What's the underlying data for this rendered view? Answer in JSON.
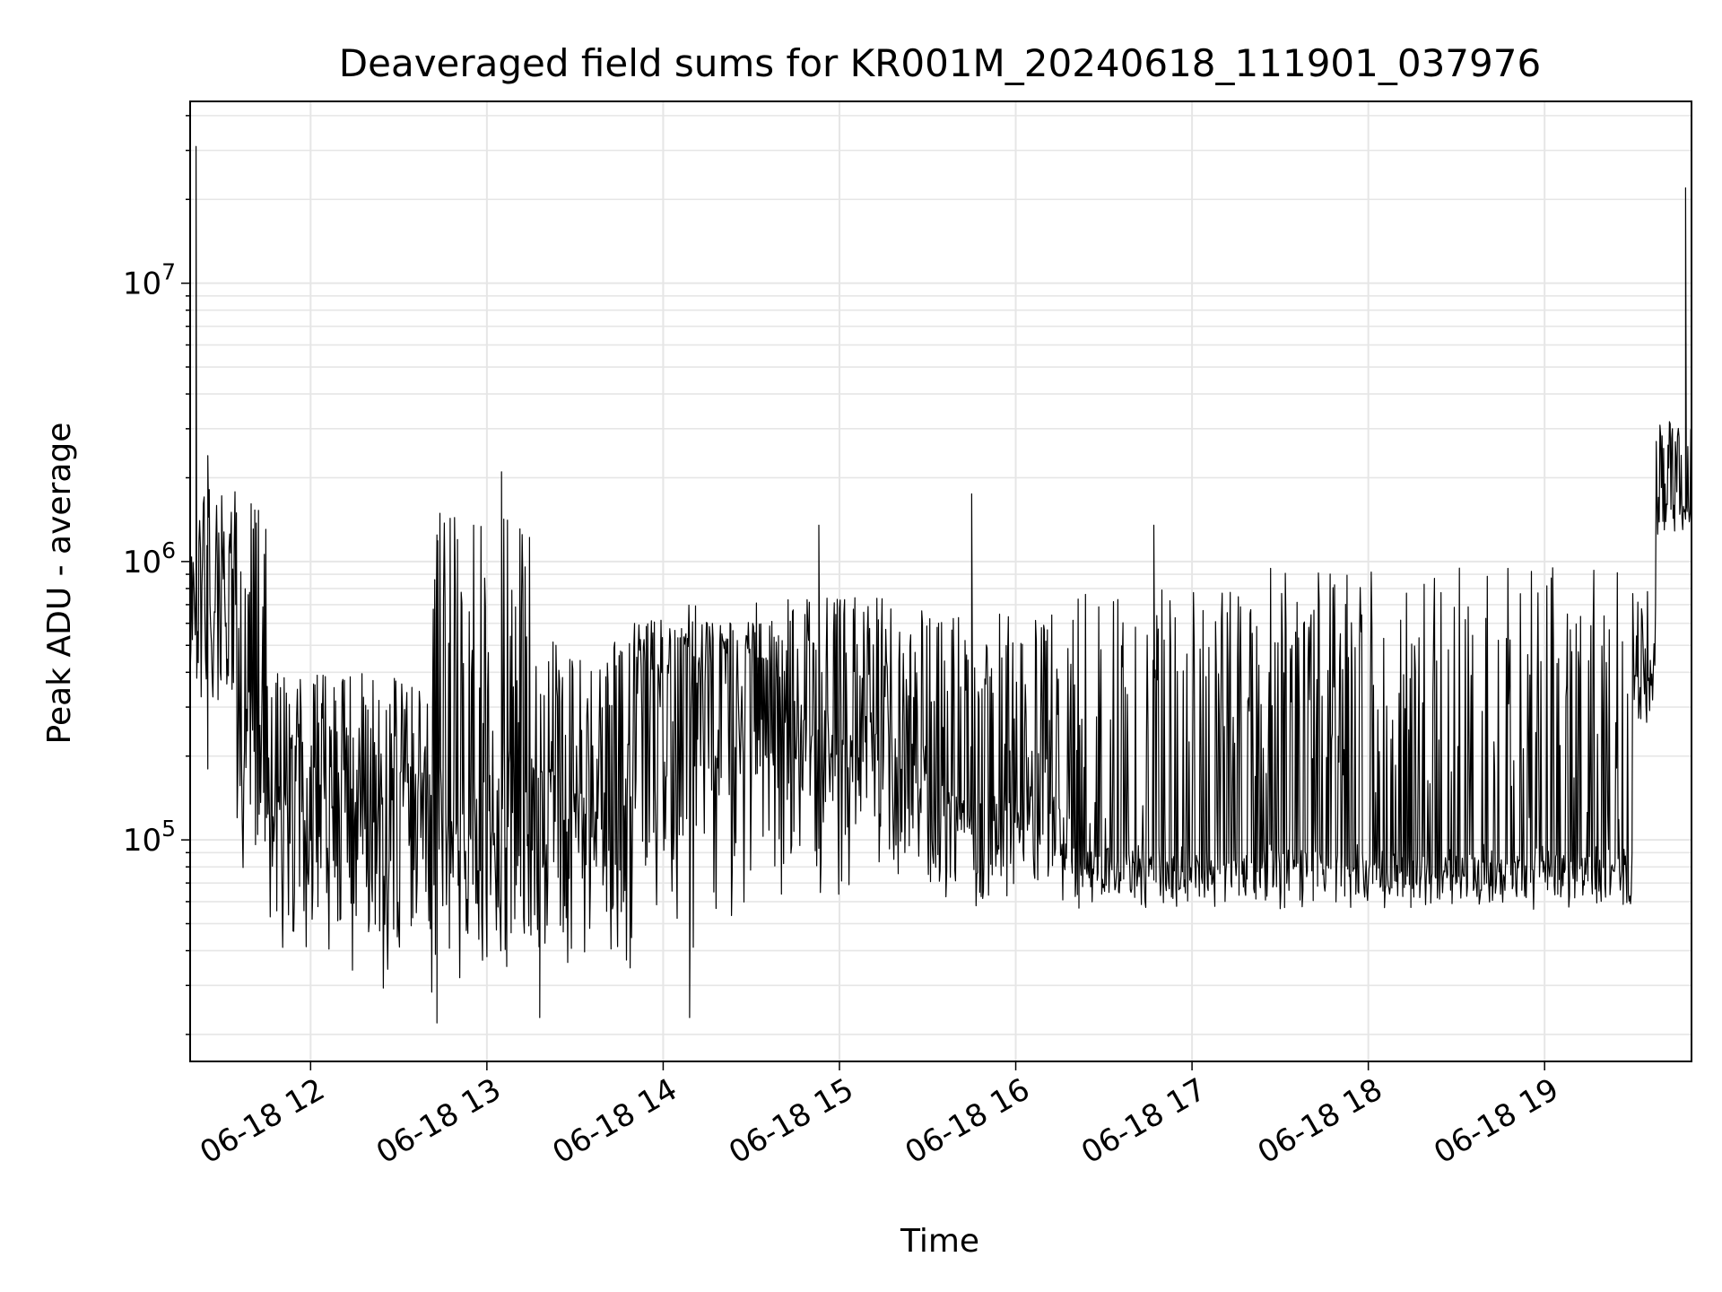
{
  "chart_data": {
    "type": "line",
    "title": "Deaveraged field sums for KR001M_20240618_111901_037976",
    "xlabel": "Time",
    "ylabel": "Peak ADU - average",
    "x_scale": "time",
    "y_scale": "log",
    "xlim": [
      "2024-06-18 11:19",
      "2024-06-18 19:50"
    ],
    "ylim": [
      16000,
      45000000
    ],
    "grid": {
      "major": true,
      "minor_y": true,
      "color": "#e6e6e6"
    },
    "line_color": "#000000",
    "x_ticks": [
      {
        "value": "2024-06-18 12:00",
        "label": "06-18 12"
      },
      {
        "value": "2024-06-18 13:00",
        "label": "06-18 13"
      },
      {
        "value": "2024-06-18 14:00",
        "label": "06-18 14"
      },
      {
        "value": "2024-06-18 15:00",
        "label": "06-18 15"
      },
      {
        "value": "2024-06-18 16:00",
        "label": "06-18 16"
      },
      {
        "value": "2024-06-18 17:00",
        "label": "06-18 17"
      },
      {
        "value": "2024-06-18 18:00",
        "label": "06-18 18"
      },
      {
        "value": "2024-06-18 19:00",
        "label": "06-18 19"
      }
    ],
    "y_ticks": [
      {
        "value": 100000,
        "base": "10",
        "exp": "5"
      },
      {
        "value": 1000000,
        "base": "10",
        "exp": "6"
      },
      {
        "value": 10000000,
        "base": "10",
        "exp": "7"
      }
    ],
    "segments": [
      {
        "t0": "2024-06-18 11:19",
        "t1": "2024-06-18 11:22",
        "floor": 280000,
        "base": 500000,
        "ceil": 1100000
      },
      {
        "t0": "2024-06-18 11:22",
        "t1": "2024-06-18 11:35",
        "floor": 150000,
        "base": 900000,
        "ceil": 2000000
      },
      {
        "t0": "2024-06-18 11:35",
        "t1": "2024-06-18 11:45",
        "floor": 70000,
        "base": 250000,
        "ceil": 1700000
      },
      {
        "t0": "2024-06-18 11:45",
        "t1": "2024-06-18 12:40",
        "floor": 28000,
        "base": 150000,
        "ceil": 400000
      },
      {
        "t0": "2024-06-18 12:40",
        "t1": "2024-06-18 13:15",
        "floor": 25000,
        "base": 120000,
        "ceil": 1500000
      },
      {
        "t0": "2024-06-18 13:15",
        "t1": "2024-06-18 13:50",
        "floor": 28000,
        "base": 150000,
        "ceil": 520000
      },
      {
        "t0": "2024-06-18 13:50",
        "t1": "2024-06-18 14:40",
        "floor": 35000,
        "base": 400000,
        "ceil": 620000
      },
      {
        "t0": "2024-06-18 14:40",
        "t1": "2024-06-18 15:30",
        "floor": 55000,
        "base": 230000,
        "ceil": 750000
      },
      {
        "t0": "2024-06-18 15:30",
        "t1": "2024-06-18 16:20",
        "floor": 55000,
        "base": 130000,
        "ceil": 650000
      },
      {
        "t0": "2024-06-18 16:20",
        "t1": "2024-06-18 17:25",
        "floor": 55000,
        "base": 85000,
        "ceil": 800000
      },
      {
        "t0": "2024-06-18 17:25",
        "t1": "2024-06-18 19:30",
        "floor": 55000,
        "base": 85000,
        "ceil": 950000
      },
      {
        "t0": "2024-06-18 19:30",
        "t1": "2024-06-18 19:38",
        "floor": 230000,
        "base": 400000,
        "ceil": 800000
      },
      {
        "t0": "2024-06-18 19:38",
        "t1": "2024-06-18 19:50",
        "floor": 1200000,
        "base": 1600000,
        "ceil": 3200000
      }
    ],
    "spikes": [
      {
        "x": "2024-06-18 11:21",
        "y": 31000000
      },
      {
        "x": "2024-06-18 11:25",
        "y": 2400000
      },
      {
        "x": "2024-06-18 12:50",
        "y": 1200000
      },
      {
        "x": "2024-06-18 13:05",
        "y": 2100000
      },
      {
        "x": "2024-06-18 14:53",
        "y": 1350000
      },
      {
        "x": "2024-06-18 15:45",
        "y": 1750000
      },
      {
        "x": "2024-06-18 16:47",
        "y": 1350000
      },
      {
        "x": "2024-06-18 19:41",
        "y": 1900000
      },
      {
        "x": "2024-06-18 19:48",
        "y": 22000000
      },
      {
        "x": "2024-06-18 14:09",
        "y": 23000
      },
      {
        "x": "2024-06-18 13:18",
        "y": 23000
      },
      {
        "x": "2024-06-18 12:43",
        "y": 22000
      }
    ]
  }
}
